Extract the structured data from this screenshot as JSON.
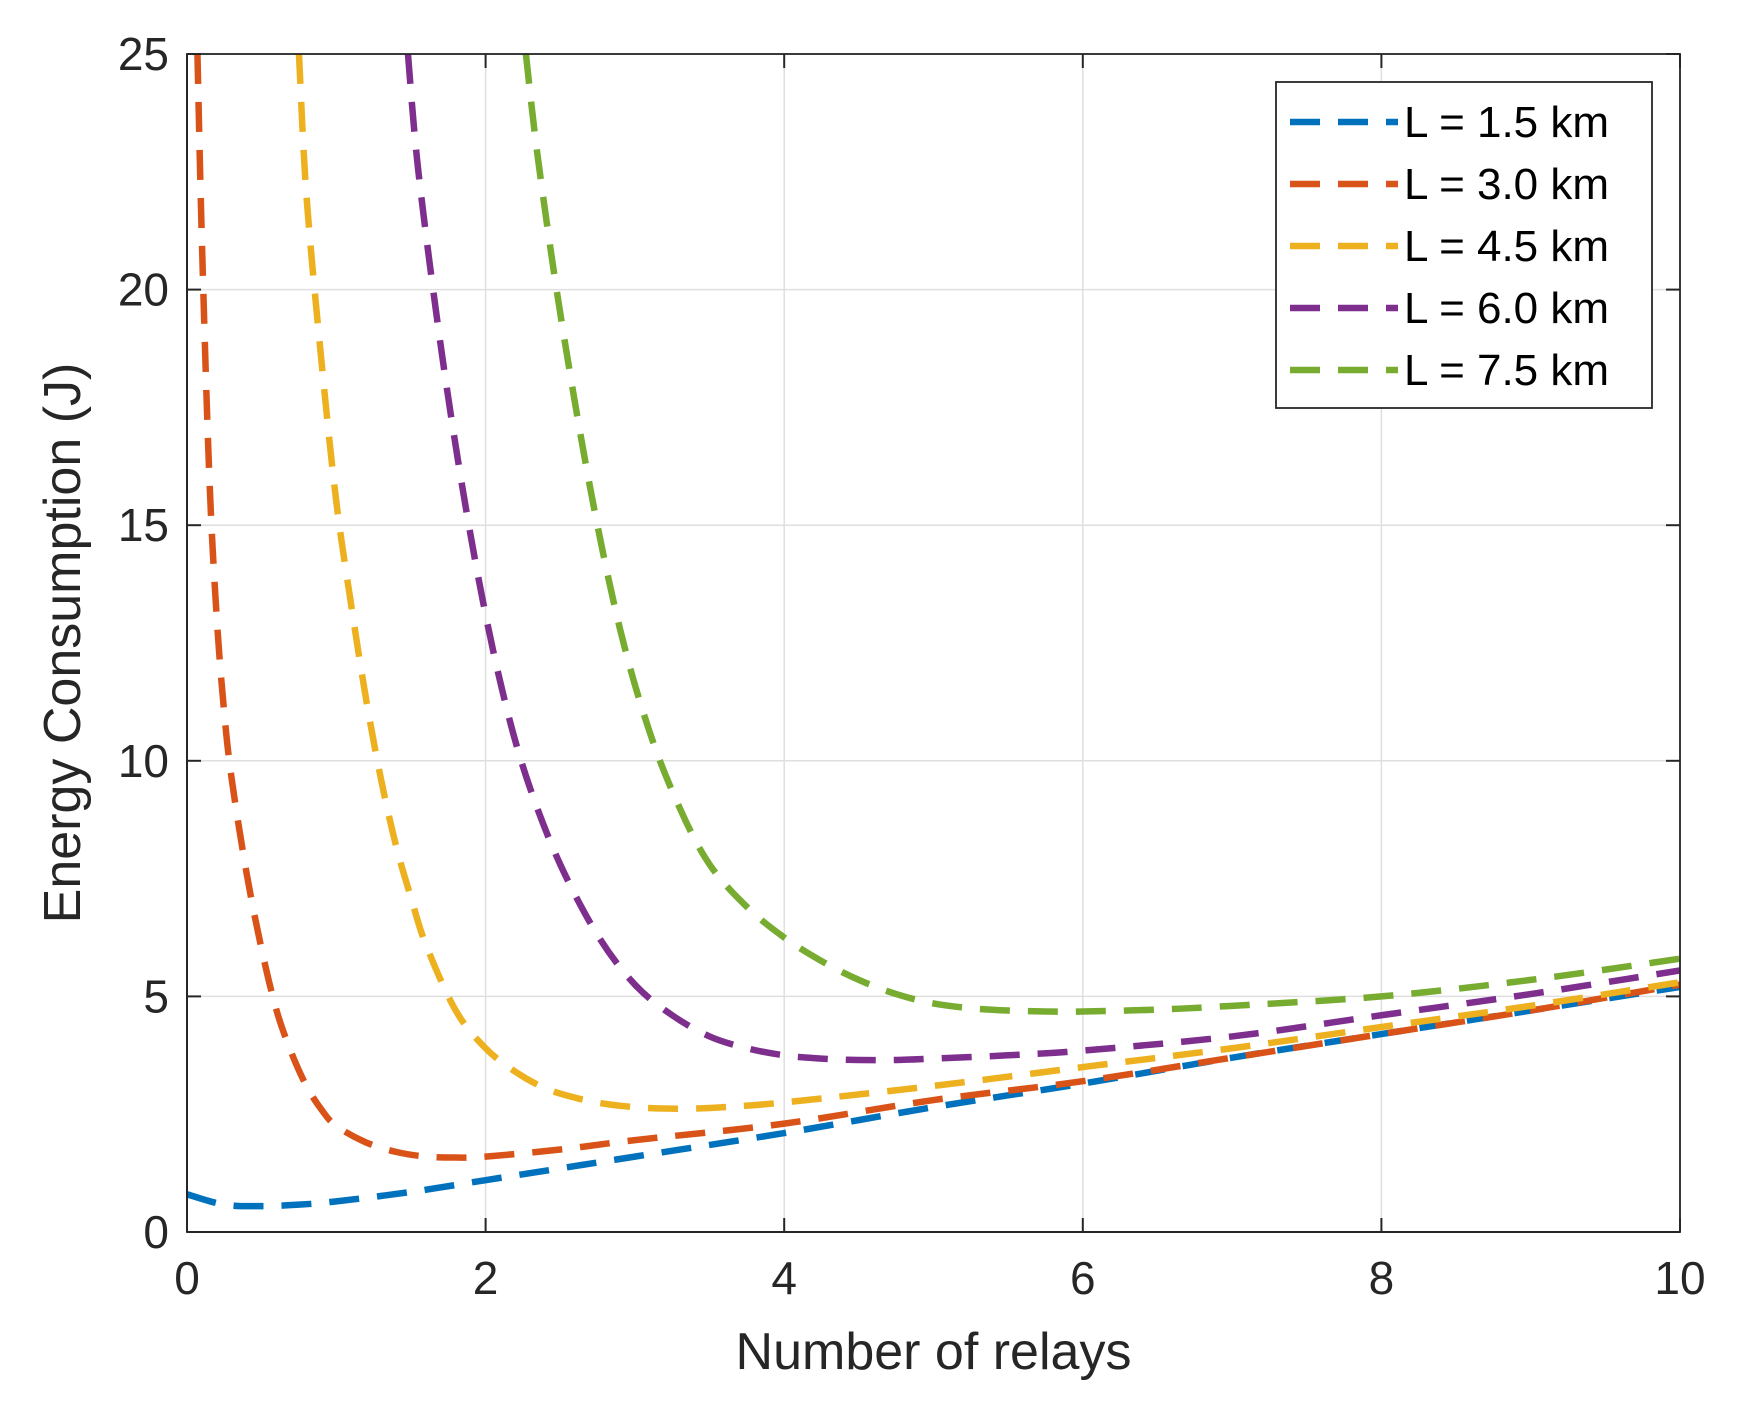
{
  "chart_data": {
    "type": "line",
    "title": "",
    "xlabel": "Number of relays",
    "ylabel": "Energy Consumption (J)",
    "xlim": [
      0,
      10
    ],
    "ylim": [
      0,
      25
    ],
    "xticks": [
      0,
      2,
      4,
      6,
      8,
      10
    ],
    "yticks": [
      0,
      5,
      10,
      15,
      20,
      25
    ],
    "grid": true,
    "legend_position": "top-right",
    "line_style": "dashed",
    "series": [
      {
        "name": "L = 1.5 km",
        "color": "#0072BD",
        "x": [
          0,
          0.25,
          0.5,
          0.75,
          1,
          1.5,
          2,
          2.5,
          3,
          4,
          5,
          6,
          7,
          8,
          9,
          10
        ],
        "y": [
          0.8,
          0.58,
          0.55,
          0.58,
          0.65,
          0.85,
          1.1,
          1.35,
          1.6,
          2.1,
          2.65,
          3.15,
          3.7,
          4.2,
          4.7,
          5.2
        ]
      },
      {
        "name": "L = 3.0 km",
        "color": "#D95319",
        "x": [
          0.07,
          0.1,
          0.15,
          0.2,
          0.25,
          0.3,
          0.4,
          0.5,
          0.6,
          0.7,
          0.8,
          0.9,
          1,
          1.2,
          1.4,
          1.6,
          1.8,
          2,
          2.5,
          3,
          4,
          5,
          6,
          7,
          8,
          9,
          10
        ],
        "y": [
          25,
          21,
          16,
          13,
          11,
          9.6,
          7.6,
          6.0,
          4.7,
          3.8,
          3.1,
          2.6,
          2.25,
          1.9,
          1.7,
          1.6,
          1.58,
          1.6,
          1.75,
          1.95,
          2.3,
          2.8,
          3.2,
          3.7,
          4.2,
          4.7,
          5.25
        ]
      },
      {
        "name": "L = 4.5 km",
        "color": "#EDB120",
        "x": [
          0.75,
          0.8,
          0.9,
          1,
          1.1,
          1.2,
          1.3,
          1.4,
          1.5,
          1.6,
          1.8,
          2,
          2.2,
          2.4,
          2.6,
          2.8,
          3,
          3.2,
          3.4,
          3.6,
          4,
          5,
          6,
          7,
          8,
          9,
          10
        ],
        "y": [
          25,
          22,
          18.5,
          15.5,
          13.3,
          11.3,
          9.6,
          8.2,
          7.1,
          6.1,
          4.7,
          3.9,
          3.4,
          3.05,
          2.85,
          2.72,
          2.65,
          2.62,
          2.62,
          2.65,
          2.75,
          3.1,
          3.5,
          3.9,
          4.35,
          4.8,
          5.3
        ]
      },
      {
        "name": "L = 6.0 km",
        "color": "#7E2F8E",
        "x": [
          1.48,
          1.55,
          1.7,
          1.85,
          2,
          2.15,
          2.3,
          2.5,
          2.75,
          3,
          3.25,
          3.5,
          3.75,
          4,
          4.25,
          4.5,
          4.75,
          5,
          5.5,
          6,
          7,
          8,
          9,
          10
        ],
        "y": [
          25,
          22.5,
          18.8,
          15.7,
          13.1,
          11.0,
          9.4,
          7.8,
          6.3,
          5.25,
          4.6,
          4.15,
          3.9,
          3.75,
          3.68,
          3.65,
          3.65,
          3.68,
          3.75,
          3.85,
          4.15,
          4.6,
          5.05,
          5.55
        ]
      },
      {
        "name": "L = 7.5 km",
        "color": "#77AC30",
        "x": [
          2.27,
          2.35,
          2.5,
          2.7,
          2.9,
          3.1,
          3.3,
          3.5,
          3.75,
          4,
          4.25,
          4.5,
          4.75,
          5,
          5.25,
          5.5,
          5.75,
          6,
          6.5,
          7,
          8,
          9,
          10
        ],
        "y": [
          25,
          22.8,
          19.5,
          15.8,
          12.8,
          10.6,
          9.0,
          7.8,
          6.9,
          6.25,
          5.75,
          5.35,
          5.05,
          4.85,
          4.75,
          4.7,
          4.68,
          4.68,
          4.72,
          4.8,
          5.0,
          5.35,
          5.8
        ]
      }
    ]
  }
}
